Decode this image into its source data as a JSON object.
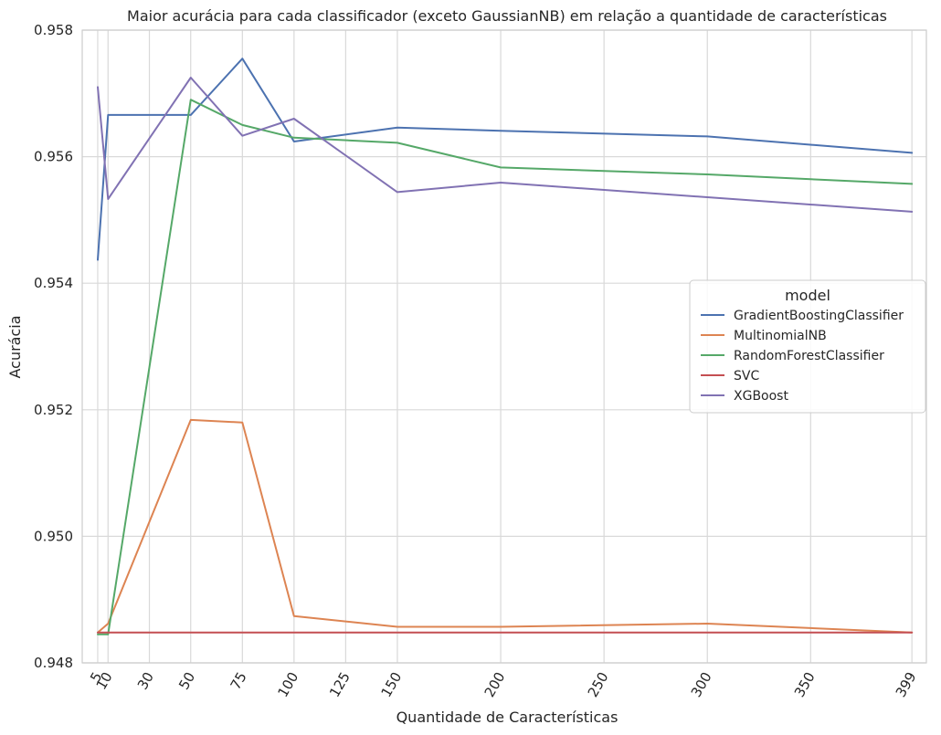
{
  "chart_data": {
    "type": "line",
    "title": "Maior acurácia para cada classificador (exceto GaussianNB) em relação a quantidade de características",
    "xlabel": "Quantidade de Características",
    "ylabel": "Acurácia",
    "x": [
      5,
      10,
      50,
      75,
      100,
      150,
      200,
      300,
      399
    ],
    "xticks": [
      5,
      10,
      30,
      50,
      75,
      100,
      125,
      150,
      200,
      250,
      300,
      350,
      399
    ],
    "yticks": [
      0.948,
      0.95,
      0.952,
      0.954,
      0.956,
      0.958
    ],
    "ytick_labels": [
      "0.948",
      "0.950",
      "0.952",
      "0.954",
      "0.956",
      "0.958"
    ],
    "xlim": [
      -2.5,
      406
    ],
    "ylim": [
      0.948,
      0.958
    ],
    "grid": true,
    "legend": {
      "title": "model",
      "placement": "center-right"
    },
    "series": [
      {
        "name": "GradientBoostingClassifier",
        "color": "#4c72b0",
        "values": [
          0.95437,
          0.95666,
          0.95666,
          0.95755,
          0.95624,
          0.95646,
          0.95641,
          0.95632,
          0.95606
        ]
      },
      {
        "name": "MultinomialNB",
        "color": "#dd8452",
        "values": [
          0.94848,
          0.94862,
          0.95184,
          0.9518,
          0.94874,
          0.94857,
          0.94857,
          0.94862,
          0.94848
        ]
      },
      {
        "name": "RandomForestClassifier",
        "color": "#55a868",
        "values": [
          0.94845,
          0.94845,
          0.9569,
          0.9565,
          0.9563,
          0.95622,
          0.95583,
          0.95572,
          0.95557
        ]
      },
      {
        "name": "SVC",
        "color": "#c44e52",
        "values": [
          0.94848,
          0.94848,
          0.94848,
          0.94848,
          0.94848,
          0.94848,
          0.94848,
          0.94848,
          0.94848
        ]
      },
      {
        "name": "XGBoost",
        "color": "#8172b3",
        "values": [
          0.9571,
          0.95533,
          0.95725,
          0.95633,
          0.9566,
          0.95544,
          0.95559,
          0.95536,
          0.95513
        ]
      }
    ]
  }
}
